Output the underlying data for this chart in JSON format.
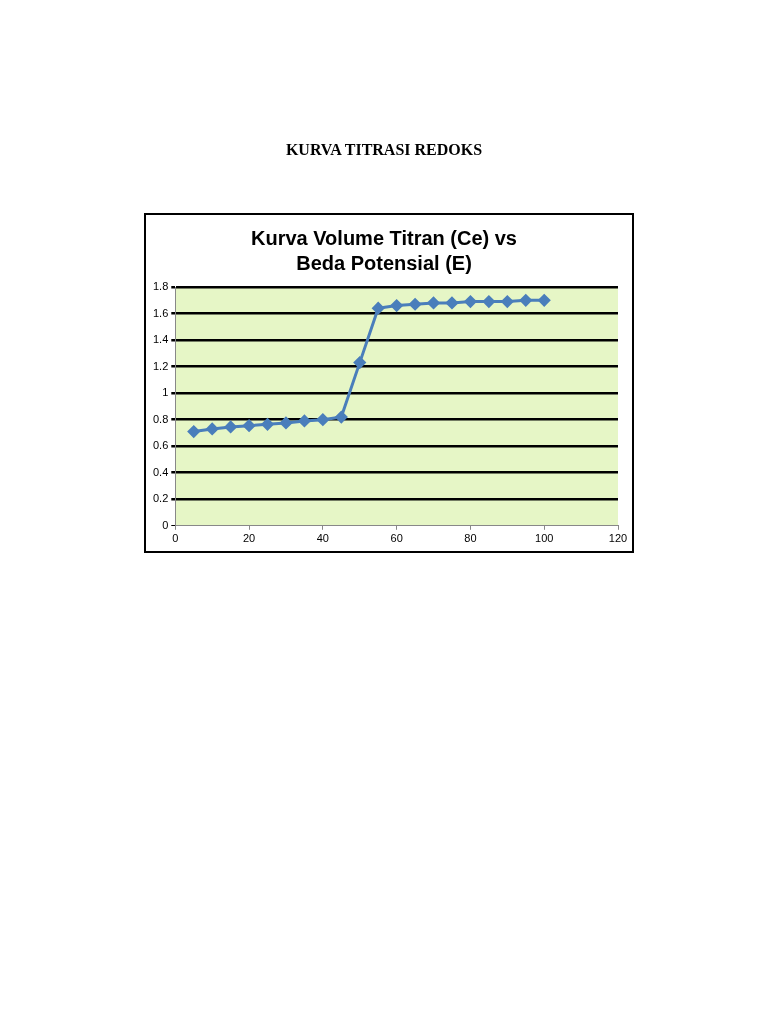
{
  "chart_data": {
    "type": "line",
    "subtitle": "KURVA TITRASI REDOKS",
    "title": "Kurva Volume Titran (Ce) vs Beda Potensial (E)",
    "x": [
      5,
      10,
      15,
      20,
      25,
      30,
      35,
      40,
      45,
      50,
      55,
      60,
      65,
      70,
      75,
      80,
      85,
      90,
      95,
      100
    ],
    "series": [
      {
        "color": "#4a7ebb",
        "values": [
          0.71,
          0.73,
          0.745,
          0.755,
          0.765,
          0.775,
          0.79,
          0.8,
          0.82,
          1.23,
          1.64,
          1.66,
          1.67,
          1.68,
          1.68,
          1.69,
          1.69,
          1.69,
          1.7,
          1.7
        ]
      }
    ],
    "xlim": [
      0,
      120
    ],
    "xticks": [
      0,
      20,
      40,
      60,
      80,
      100,
      120
    ],
    "ylim": [
      0,
      1.8
    ],
    "yticks": [
      0,
      0.2,
      0.4,
      0.6,
      0.8,
      1,
      1.2,
      1.4,
      1.6,
      1.8
    ],
    "grid": "y",
    "legend": false,
    "marker": "diamond",
    "line_style": "solid"
  }
}
